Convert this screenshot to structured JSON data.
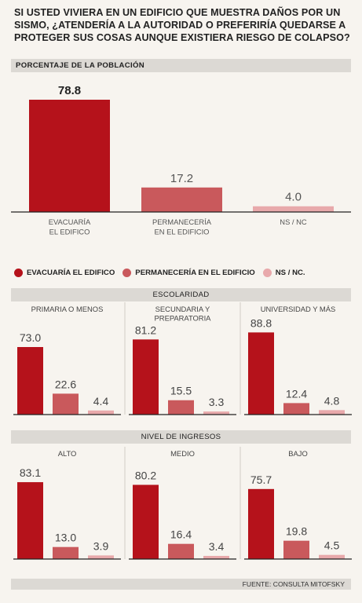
{
  "title": "SI USTED VIVIERA EN UN EDIFICIO QUE MUESTRA DAÑOS POR UN SISMO, ¿ATENDERÍA A LA AUTORIDAD O PREFERIRÍA QUEDARSE A PROTEGER SUS COSAS AUNQUE EXISTIERA RIESGO DE COLAPSO?",
  "main_header": "PORCENTAJE DE LA POBLACIÓN",
  "legend": [
    {
      "label": "EVACUARÍA EL EDIFICO",
      "color": "#b5121b"
    },
    {
      "label": "PERMANECERÍA EN EL EDIFICIO",
      "color": "#c9595c"
    },
    {
      "label": "NS / NC.",
      "color": "#e8a9ab"
    }
  ],
  "section_headers": {
    "escolaridad": "ESCOLARIDAD",
    "ingresos": "NIVEL DE INGRESOS"
  },
  "source": "FUENTE: CONSULTA MITOFSKY",
  "chart_data": [
    {
      "type": "bar",
      "title": "PORCENTAJE DE LA POBLACIÓN",
      "categories": [
        "EVACUARÍA\nEL EDIFICO",
        "PERMANECERÍA\nEN EL EDIFICIO",
        "NS / NC"
      ],
      "values": [
        78.8,
        17.2,
        4.0
      ],
      "value_labels": [
        "78.8",
        "17.2",
        "4.0"
      ],
      "colors": [
        "#b5121b",
        "#c9595c",
        "#e8a9ab"
      ],
      "ylim": [
        0,
        80
      ]
    },
    {
      "type": "bar",
      "group": "ESCOLARIDAD",
      "subtitle": "PRIMARIA O MENOS",
      "values": [
        73.0,
        22.6,
        4.4
      ],
      "value_labels": [
        "73.0",
        "22.6",
        "4.4"
      ],
      "ylim": [
        0,
        90
      ]
    },
    {
      "type": "bar",
      "group": "ESCOLARIDAD",
      "subtitle": "SECUNDARIA Y\nPREPARATORIA",
      "values": [
        81.2,
        15.5,
        3.3
      ],
      "value_labels": [
        "81.2",
        "15.5",
        "3.3"
      ],
      "ylim": [
        0,
        90
      ]
    },
    {
      "type": "bar",
      "group": "ESCOLARIDAD",
      "subtitle": "UNIVERSIDAD Y MÁS",
      "values": [
        88.8,
        12.4,
        4.8
      ],
      "value_labels": [
        "88.8",
        "12.4",
        "4.8"
      ],
      "ylim": [
        0,
        90
      ]
    },
    {
      "type": "bar",
      "group": "NIVEL DE INGRESOS",
      "subtitle": "ALTO",
      "values": [
        83.1,
        13.0,
        3.9
      ],
      "value_labels": [
        "83.1",
        "13.0",
        "3.9"
      ],
      "ylim": [
        0,
        90
      ]
    },
    {
      "type": "bar",
      "group": "NIVEL DE INGRESOS",
      "subtitle": "MEDIO",
      "values": [
        80.2,
        16.4,
        3.4
      ],
      "value_labels": [
        "80.2",
        "16.4",
        "3.4"
      ],
      "ylim": [
        0,
        90
      ]
    },
    {
      "type": "bar",
      "group": "NIVEL DE INGRESOS",
      "subtitle": "BAJO",
      "values": [
        75.7,
        19.8,
        4.5
      ],
      "value_labels": [
        "75.7",
        "19.8",
        "4.5"
      ],
      "ylim": [
        0,
        90
      ]
    }
  ]
}
